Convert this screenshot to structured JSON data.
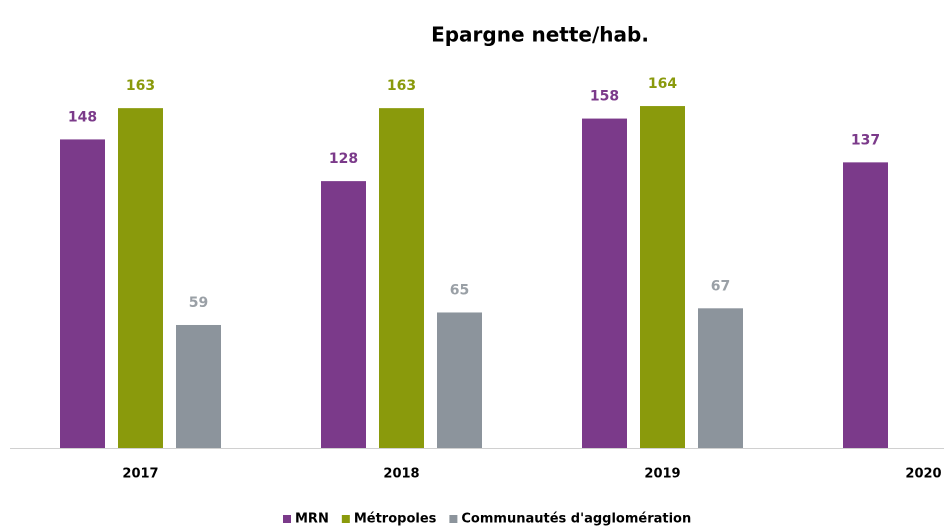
{
  "chart_data": {
    "type": "bar",
    "title": "Epargne nette/hab.",
    "categories": [
      "2017",
      "2018",
      "2019",
      "2020"
    ],
    "series": [
      {
        "name": "MRN",
        "color": "#7b3a8a",
        "values": [
          148,
          128,
          158,
          137
        ]
      },
      {
        "name": "Métropoles",
        "color": "#8a9a0c",
        "values": [
          163,
          163,
          164,
          null
        ]
      },
      {
        "name": "Communautés d'agglomération",
        "color": "#8c949c",
        "values": [
          59,
          65,
          67,
          null
        ]
      }
    ],
    "ylim": [
      0,
      200
    ],
    "legend": "bottom"
  }
}
